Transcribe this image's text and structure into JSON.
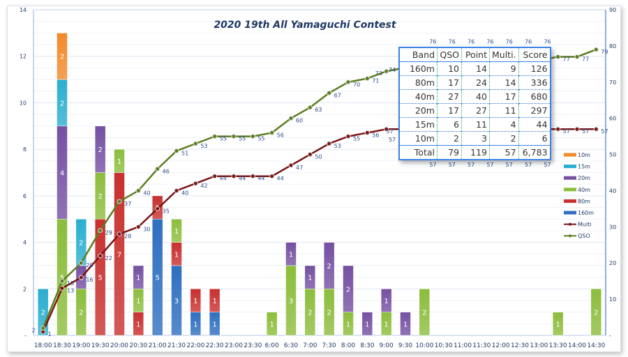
{
  "chart_data": {
    "type": "bar",
    "title": "2020 19th All Yamaguchi Contest",
    "xlabel": "",
    "ylabel": "",
    "y2label": "",
    "ylim": [
      0,
      14
    ],
    "y2lim": [
      0,
      90
    ],
    "left_ticks": [
      "-",
      "2",
      "4",
      "6",
      "8",
      "10",
      "12",
      "14"
    ],
    "right_ticks": [
      "-",
      "10",
      "20",
      "30",
      "40",
      "50",
      "60",
      "70",
      "80",
      "90"
    ],
    "grid": true,
    "legend_position": "right",
    "categories": [
      "18:00",
      "18:30",
      "19:00",
      "19:30",
      "20:00",
      "20:30",
      "21:00",
      "21:30",
      "22:00",
      "22:30",
      "23:00",
      "23:30",
      "6:00",
      "6:30",
      "7:00",
      "7:30",
      "8:00",
      "8:30",
      "9:00",
      "9:30",
      "10:00",
      "10:30",
      "11:00",
      "11:30",
      "12:00",
      "12:30",
      "13:00",
      "13:30",
      "14:00",
      "14:30"
    ],
    "bar_series": [
      {
        "name": "160m",
        "color": "#2e6fc0",
        "values": [
          0,
          0,
          0,
          0,
          0,
          0,
          5,
          3,
          1,
          1,
          0,
          0,
          0,
          0,
          0,
          0,
          0,
          0,
          0,
          0,
          0,
          0,
          0,
          0,
          0,
          0,
          0,
          0,
          0,
          0
        ]
      },
      {
        "name": "80m",
        "color": "#c8302e",
        "values": [
          0,
          0,
          0,
          5,
          7,
          1,
          1,
          1,
          1,
          1,
          0,
          0,
          0,
          0,
          0,
          0,
          0,
          0,
          0,
          0,
          0,
          0,
          0,
          0,
          0,
          0,
          0,
          0,
          0,
          0
        ]
      },
      {
        "name": "40m",
        "color": "#8cbd3c",
        "values": [
          0,
          5,
          2,
          2,
          1,
          1,
          0,
          1,
          0,
          0,
          0,
          0,
          1,
          3,
          2,
          2,
          1,
          0,
          1,
          0,
          2,
          0,
          0,
          0,
          0,
          0,
          0,
          1,
          0,
          2
        ]
      },
      {
        "name": "20m",
        "color": "#7550a2",
        "values": [
          0,
          4,
          1,
          2,
          0,
          1,
          0,
          0,
          0,
          0,
          0,
          0,
          0,
          1,
          1,
          2,
          2,
          1,
          1,
          1,
          0,
          0,
          0,
          0,
          0,
          0,
          0,
          0,
          0,
          0
        ]
      },
      {
        "name": "15m",
        "color": "#2aaed0",
        "values": [
          2,
          2,
          2,
          0,
          0,
          0,
          0,
          0,
          0,
          0,
          0,
          0,
          0,
          0,
          0,
          0,
          0,
          0,
          0,
          0,
          0,
          0,
          0,
          0,
          0,
          0,
          0,
          0,
          0,
          0
        ]
      },
      {
        "name": "10m",
        "color": "#f28a2a",
        "values": [
          0,
          2,
          0,
          0,
          0,
          0,
          0,
          0,
          0,
          0,
          0,
          0,
          0,
          0,
          0,
          0,
          0,
          0,
          0,
          0,
          0,
          0,
          0,
          0,
          0,
          0,
          0,
          0,
          0,
          0
        ]
      }
    ],
    "legend_order": [
      "10m",
      "15m",
      "20m",
      "40m",
      "80m",
      "160m",
      "Multi",
      "QSO"
    ],
    "line_series": [
      {
        "name": "Multi",
        "color": "#7a1414",
        "axis": "right",
        "values": [
          1,
          13,
          16,
          22,
          28,
          30,
          35,
          40,
          42,
          44,
          44,
          44,
          44,
          47,
          50,
          53,
          55,
          56,
          57,
          57,
          57,
          57,
          57,
          57,
          57,
          57,
          57,
          57,
          57,
          57
        ]
      },
      {
        "name": "QSO",
        "color": "#5b7d1e",
        "axis": "right",
        "values": [
          2,
          15,
          20,
          29,
          37,
          40,
          46,
          51,
          53,
          55,
          55,
          55,
          56,
          60,
          63,
          67,
          70,
          71,
          73,
          74,
          76,
          76,
          76,
          76,
          76,
          76,
          76,
          77,
          77,
          79
        ]
      }
    ]
  },
  "table": {
    "headers": [
      "Band",
      "QSO",
      "Point",
      "Multi.",
      "Score"
    ],
    "rows": [
      [
        "160m",
        "10",
        "14",
        "9",
        "126"
      ],
      [
        "80m",
        "17",
        "24",
        "14",
        "336"
      ],
      [
        "40m",
        "27",
        "40",
        "17",
        "680"
      ],
      [
        "20m",
        "17",
        "27",
        "11",
        "297"
      ],
      [
        "15m",
        "6",
        "11",
        "4",
        "44"
      ],
      [
        "10m",
        "2",
        "3",
        "2",
        "6"
      ]
    ],
    "total": [
      "Total",
      "79",
      "119",
      "57",
      "6,783"
    ]
  }
}
